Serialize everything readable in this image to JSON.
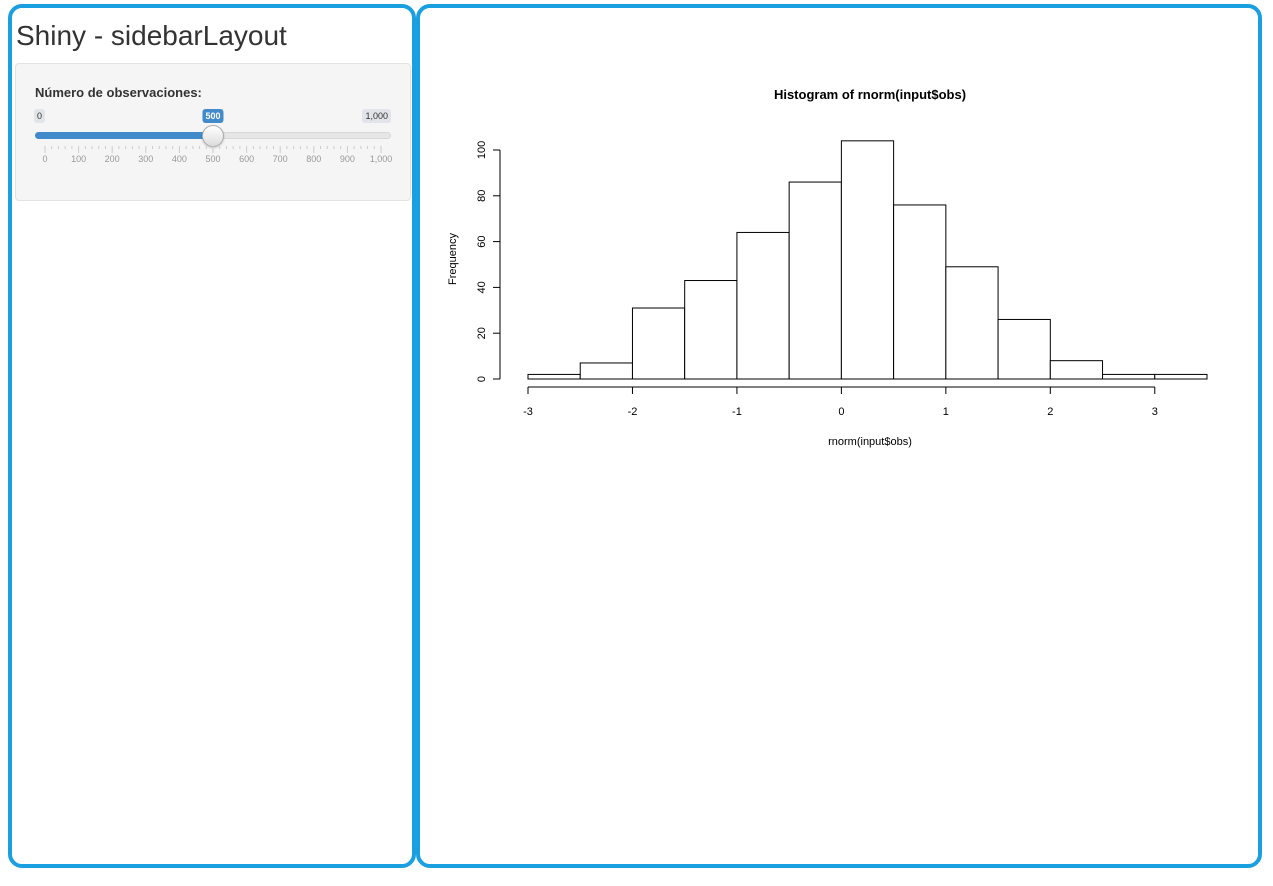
{
  "app": {
    "title": "Shiny - sidebarLayout"
  },
  "sidebar": {
    "slider": {
      "label": "Número de observaciones:",
      "min_label": "0",
      "max_label": "1,000",
      "value_label": "500",
      "min": 0,
      "max": 1000,
      "value": 500,
      "grid_ticks": [
        "0",
        "100",
        "200",
        "300",
        "400",
        "500",
        "600",
        "700",
        "800",
        "900",
        "1,000"
      ]
    }
  },
  "colors": {
    "frame": "#1a9fe0",
    "accent": "#428bca",
    "well_bg": "#f5f5f5"
  },
  "chart_data": {
    "type": "bar",
    "title": "Histogram of rnorm(input$obs)",
    "xlabel": "rnorm(input$obs)",
    "ylabel": "Frequency",
    "bins": [
      {
        "x0": -3.0,
        "x1": -2.5,
        "count": 2
      },
      {
        "x0": -2.5,
        "x1": -2.0,
        "count": 7
      },
      {
        "x0": -2.0,
        "x1": -1.5,
        "count": 31
      },
      {
        "x0": -1.5,
        "x1": -1.0,
        "count": 43
      },
      {
        "x0": -1.0,
        "x1": -0.5,
        "count": 64
      },
      {
        "x0": -0.5,
        "x1": 0.0,
        "count": 86
      },
      {
        "x0": 0.0,
        "x1": 0.5,
        "count": 104
      },
      {
        "x0": 0.5,
        "x1": 1.0,
        "count": 76
      },
      {
        "x0": 1.0,
        "x1": 1.5,
        "count": 49
      },
      {
        "x0": 1.5,
        "x1": 2.0,
        "count": 26
      },
      {
        "x0": 2.0,
        "x1": 2.5,
        "count": 8
      },
      {
        "x0": 2.5,
        "x1": 3.0,
        "count": 2
      },
      {
        "x0": 3.0,
        "x1": 3.5,
        "count": 2
      }
    ],
    "xticks": [
      -3,
      -2,
      -1,
      0,
      1,
      2,
      3
    ],
    "yticks": [
      0,
      20,
      40,
      60,
      80,
      100
    ],
    "xlim": [
      -3,
      3.5
    ],
    "ylim": [
      0,
      104
    ],
    "grid": false
  }
}
